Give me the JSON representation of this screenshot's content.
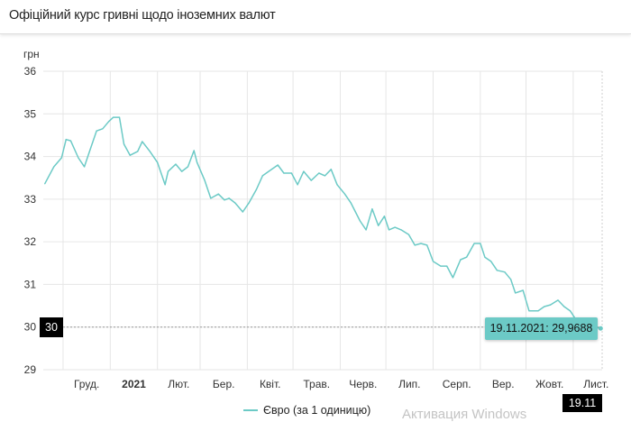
{
  "header": {
    "title": "Офіційний курс гривні щодо іноземних валют"
  },
  "watermark": "Активация Windows",
  "crosshair": {
    "y_label": "30",
    "x_label": "19.11",
    "tooltip": "19.11.2021: 29,9688"
  },
  "colors": {
    "series": "#6ccac6",
    "grid": "#e6e6e6",
    "badge": "#000000"
  },
  "chart_data": {
    "type": "line",
    "ylabel": "грн",
    "ylim": [
      29,
      36
    ],
    "yticks": [
      "29",
      "30",
      "31",
      "32",
      "33",
      "34",
      "35",
      "36"
    ],
    "xlim": [
      "2020-11-18",
      "2021-11-20"
    ],
    "xticks": [
      {
        "label": "Груд.",
        "month": "2020-12"
      },
      {
        "label": "2021",
        "month": "2021-01",
        "bold": true
      },
      {
        "label": "Лют.",
        "month": "2021-02"
      },
      {
        "label": "Бер.",
        "month": "2021-03"
      },
      {
        "label": "Квіт.",
        "month": "2021-04"
      },
      {
        "label": "Трав.",
        "month": "2021-05"
      },
      {
        "label": "Черв.",
        "month": "2021-06"
      },
      {
        "label": "Лип.",
        "month": "2021-07"
      },
      {
        "label": "Серп.",
        "month": "2021-08"
      },
      {
        "label": "Вер.",
        "month": "2021-09"
      },
      {
        "label": "Жовт.",
        "month": "2021-10"
      },
      {
        "label": "Лист.",
        "month": "2021-11"
      }
    ],
    "grid": true,
    "legend_placement": "bottom",
    "series": [
      {
        "name": "Євро (за 1 одиницю)",
        "points": [
          [
            "2020-11-19",
            33.36
          ],
          [
            "2020-11-25",
            33.76
          ],
          [
            "2020-11-30",
            33.97
          ],
          [
            "2020-12-03",
            34.4
          ],
          [
            "2020-12-06",
            34.37
          ],
          [
            "2020-12-11",
            33.97
          ],
          [
            "2020-12-15",
            33.76
          ],
          [
            "2020-12-18",
            34.08
          ],
          [
            "2020-12-23",
            34.6
          ],
          [
            "2020-12-27",
            34.65
          ],
          [
            "2020-12-31",
            34.82
          ],
          [
            "2021-01-03",
            34.92
          ],
          [
            "2021-01-07",
            34.92
          ],
          [
            "2021-01-10",
            34.29
          ],
          [
            "2021-01-14",
            34.03
          ],
          [
            "2021-01-19",
            34.12
          ],
          [
            "2021-01-22",
            34.35
          ],
          [
            "2021-01-27",
            34.12
          ],
          [
            "2021-02-01",
            33.86
          ],
          [
            "2021-02-06",
            33.34
          ],
          [
            "2021-02-08",
            33.65
          ],
          [
            "2021-02-13",
            33.82
          ],
          [
            "2021-02-17",
            33.65
          ],
          [
            "2021-02-21",
            33.76
          ],
          [
            "2021-02-25",
            34.14
          ],
          [
            "2021-02-27",
            33.86
          ],
          [
            "2021-03-04",
            33.44
          ],
          [
            "2021-03-08",
            33.02
          ],
          [
            "2021-03-13",
            33.12
          ],
          [
            "2021-03-17",
            32.98
          ],
          [
            "2021-03-20",
            33.02
          ],
          [
            "2021-03-24",
            32.91
          ],
          [
            "2021-03-29",
            32.7
          ],
          [
            "2021-04-02",
            32.91
          ],
          [
            "2021-04-07",
            33.23
          ],
          [
            "2021-04-11",
            33.55
          ],
          [
            "2021-04-17",
            33.7
          ],
          [
            "2021-04-21",
            33.8
          ],
          [
            "2021-04-25",
            33.61
          ],
          [
            "2021-04-30",
            33.61
          ],
          [
            "2021-05-04",
            33.34
          ],
          [
            "2021-05-08",
            33.65
          ],
          [
            "2021-05-13",
            33.44
          ],
          [
            "2021-05-18",
            33.61
          ],
          [
            "2021-05-22",
            33.55
          ],
          [
            "2021-05-26",
            33.7
          ],
          [
            "2021-05-30",
            33.34
          ],
          [
            "2021-06-04",
            33.12
          ],
          [
            "2021-06-08",
            32.91
          ],
          [
            "2021-06-14",
            32.49
          ],
          [
            "2021-06-18",
            32.28
          ],
          [
            "2021-06-22",
            32.77
          ],
          [
            "2021-06-26",
            32.38
          ],
          [
            "2021-06-30",
            32.6
          ],
          [
            "2021-07-03",
            32.28
          ],
          [
            "2021-07-07",
            32.34
          ],
          [
            "2021-07-11",
            32.28
          ],
          [
            "2021-07-16",
            32.17
          ],
          [
            "2021-07-20",
            31.92
          ],
          [
            "2021-07-24",
            31.96
          ],
          [
            "2021-07-28",
            31.92
          ],
          [
            "2021-08-01",
            31.54
          ],
          [
            "2021-08-06",
            31.43
          ],
          [
            "2021-08-10",
            31.43
          ],
          [
            "2021-08-14",
            31.16
          ],
          [
            "2021-08-19",
            31.58
          ],
          [
            "2021-08-23",
            31.64
          ],
          [
            "2021-08-28",
            31.96
          ],
          [
            "2021-09-01",
            31.96
          ],
          [
            "2021-09-04",
            31.64
          ],
          [
            "2021-09-08",
            31.54
          ],
          [
            "2021-09-12",
            31.33
          ],
          [
            "2021-09-17",
            31.29
          ],
          [
            "2021-09-21",
            31.12
          ],
          [
            "2021-09-24",
            30.8
          ],
          [
            "2021-09-29",
            30.86
          ],
          [
            "2021-10-03",
            30.38
          ],
          [
            "2021-10-09",
            30.38
          ],
          [
            "2021-10-13",
            30.48
          ],
          [
            "2021-10-17",
            30.52
          ],
          [
            "2021-10-22",
            30.63
          ],
          [
            "2021-10-26",
            30.48
          ],
          [
            "2021-10-30",
            30.38
          ],
          [
            "2021-11-03",
            30.16
          ],
          [
            "2021-11-07",
            30.06
          ],
          [
            "2021-11-19",
            29.9688
          ]
        ]
      }
    ]
  }
}
